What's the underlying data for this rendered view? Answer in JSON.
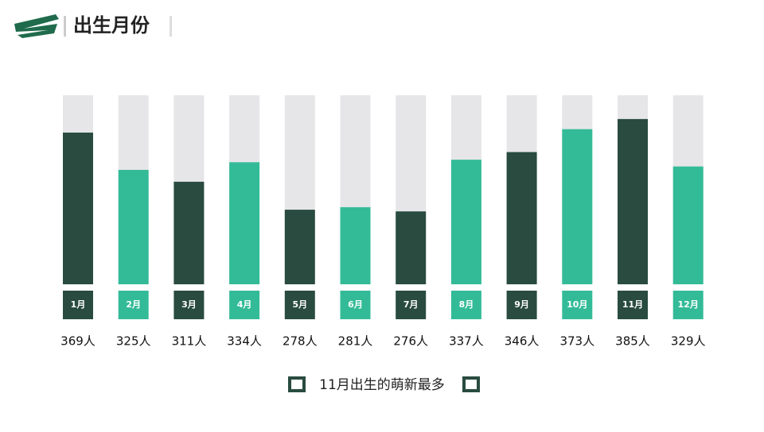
{
  "chart_data": {
    "type": "bar",
    "title": "出生月份",
    "categories": [
      "1月",
      "2月",
      "3月",
      "4月",
      "5月",
      "6月",
      "7月",
      "8月",
      "9月",
      "10月",
      "11月",
      "12月"
    ],
    "values": [
      369,
      325,
      311,
      334,
      278,
      281,
      276,
      337,
      346,
      373,
      385,
      329
    ],
    "value_labels": [
      "369人",
      "325人",
      "311人",
      "334人",
      "278人",
      "281人",
      "276人",
      "337人",
      "346人",
      "373人",
      "385人",
      "329人"
    ],
    "colors": [
      "#294b40",
      "#33bb98",
      "#294b40",
      "#33bb98",
      "#294b40",
      "#33bb98",
      "#294b40",
      "#33bb98",
      "#294b40",
      "#33bb98",
      "#294b40",
      "#33bb98"
    ],
    "track_color": "#e6e6e8",
    "ylim": [
      190,
      413
    ],
    "annotation": "11月出生的萌新最多"
  }
}
